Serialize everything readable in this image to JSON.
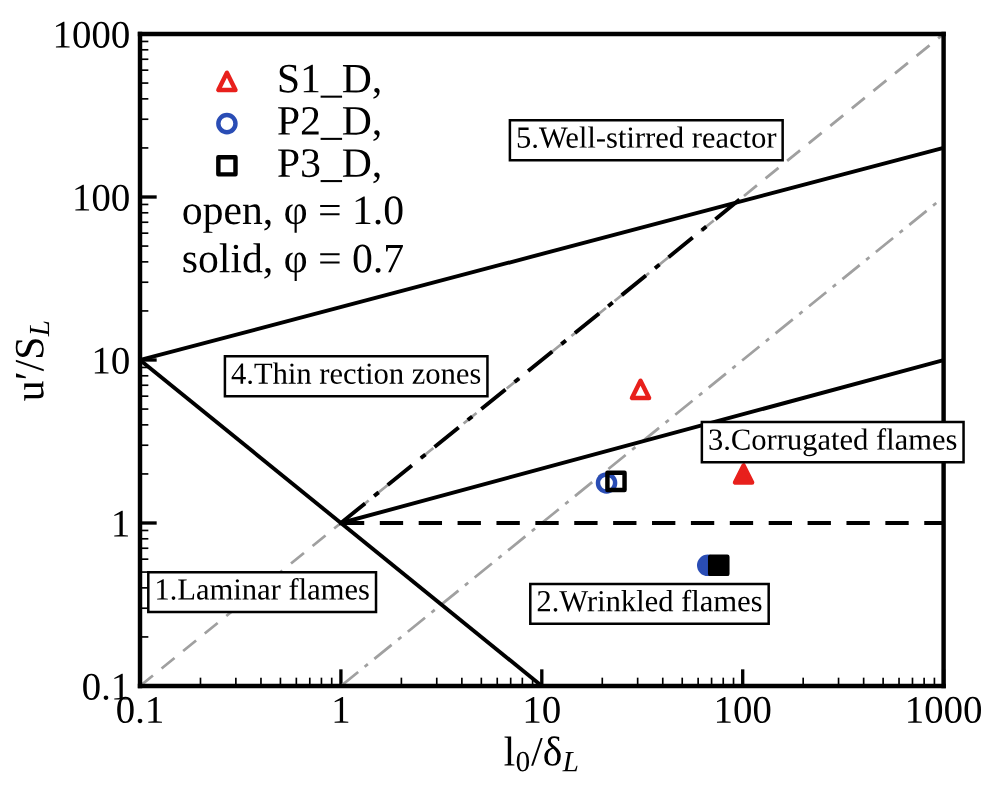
{
  "chart_data": {
    "type": "scatter",
    "xlabel": "l$_{0}$/δ$_{L}$",
    "ylabel": "u′/S$_{L}$",
    "log": "xy",
    "xlim": [
      0.1,
      1000
    ],
    "ylim": [
      0.1,
      1000
    ],
    "xticks": [
      0.1,
      1,
      10,
      100,
      1000
    ],
    "yticks": [
      0.1,
      1,
      10,
      100,
      1000
    ],
    "grid": false,
    "legend": "top left",
    "series": [
      {
        "type": "line",
        "color": "#a0a0a0",
        "line_style": "dashed",
        "x": [
          0.1,
          1000
        ],
        "values": [
          0.1,
          1000
        ]
      },
      {
        "type": "line",
        "color": "#a0a0a0",
        "line_style": "dashdot",
        "x": [
          1,
          1000
        ],
        "values": [
          0.1,
          100
        ]
      },
      {
        "type": "line",
        "color": "#000000",
        "line_style": "solid",
        "x": [
          0.1,
          1000
        ],
        "values": [
          10,
          200
        ]
      },
      {
        "type": "line",
        "color": "#000000",
        "line_style": "solid",
        "x": [
          0.1,
          10
        ],
        "values": [
          10,
          0.1
        ]
      },
      {
        "type": "line",
        "color": "#000000",
        "line_style": "solid",
        "x": [
          1,
          1000
        ],
        "values": [
          1,
          10
        ]
      },
      {
        "type": "line",
        "color": "#000000",
        "line_style": "dashed",
        "x": [
          1,
          1000
        ],
        "values": [
          1,
          1
        ]
      },
      {
        "type": "line",
        "color": "#000000",
        "line_style": "dashdot",
        "x": [
          1,
          100
        ],
        "values": [
          1,
          100
        ]
      },
      {
        "name": "S1_D,",
        "color": "#e8201c",
        "marker": "triangle",
        "x": [
          31
        ],
        "values": [
          6.6
        ]
      },
      {
        "name": "P2_D,",
        "color": "#2a4db5",
        "marker": "circle",
        "x": [
          21
        ],
        "values": [
          1.76
        ]
      },
      {
        "name": "P3_D,",
        "color": "#000000",
        "marker": "square",
        "x": [
          23.4
        ],
        "values": [
          1.8
        ]
      },
      {
        "color": "#e8201c",
        "marker": "triangle",
        "x": [
          101
        ],
        "values": [
          2.0
        ]
      },
      {
        "color": "#2a4db5",
        "marker": "circle",
        "x": [
          67
        ],
        "values": [
          0.55
        ]
      },
      {
        "color": "#000000",
        "marker": "square",
        "x": [
          76
        ],
        "values": [
          0.55
        ]
      }
    ],
    "annotations": [
      "1.Laminar flames",
      "2.Wrinkled flames",
      "3.Corrugated flames",
      "4.Thin rection zones",
      "5.Well-stirred reactor",
      "open, φ = 1.0",
      "solid, φ = 0.7"
    ]
  }
}
